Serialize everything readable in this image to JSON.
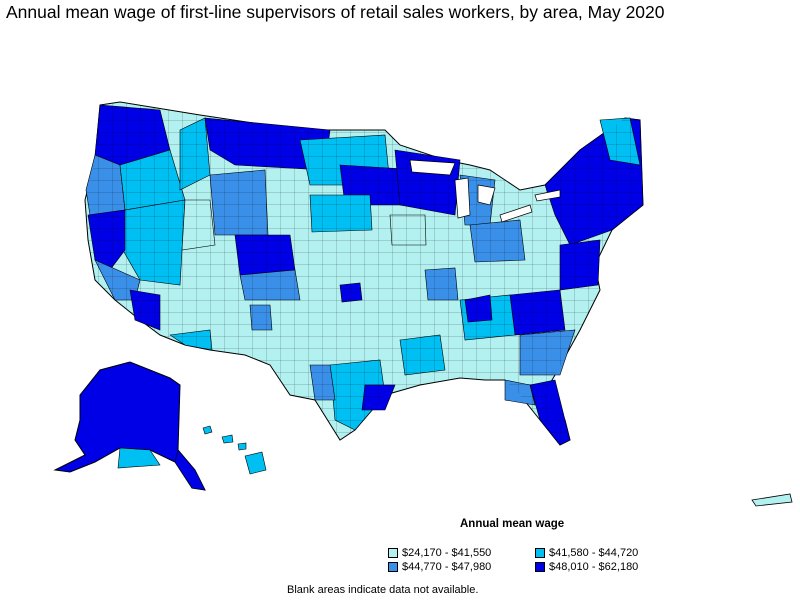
{
  "title": "Annual mean wage of first-line supervisors of retail sales workers, by area, May 2020",
  "legend": {
    "title": "Annual mean wage",
    "items": [
      {
        "label": "$24,170 - $41,550",
        "color": "#b3f0f0"
      },
      {
        "label": "$41,580 - $44,720",
        "color": "#00bff3"
      },
      {
        "label": "$44,770 - $47,980",
        "color": "#3a8fe8"
      },
      {
        "label": "$48,010 - $62,180",
        "color": "#0000e6"
      }
    ]
  },
  "note": "Blank areas indicate data not available."
}
